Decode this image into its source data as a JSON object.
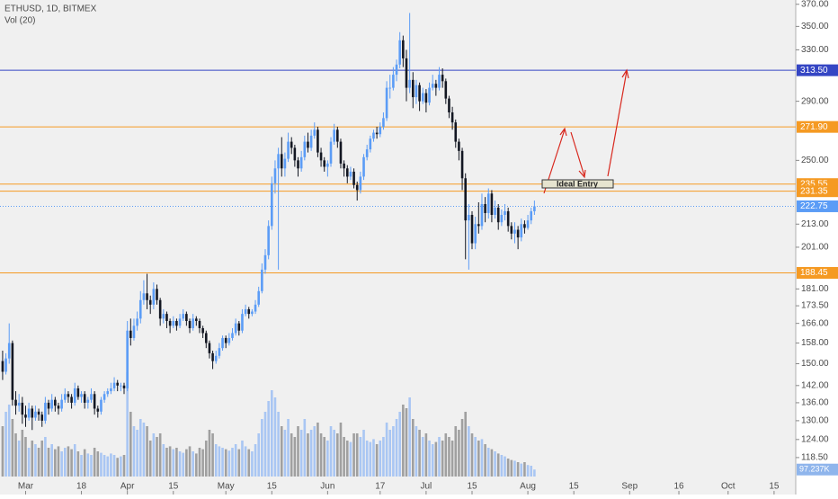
{
  "chart_data": {
    "type": "candlestick",
    "title": "ETHUSD, 1D, BITMEX",
    "log_scale": true,
    "up_color": "#5b9cf6",
    "down_color": "#131722",
    "xlim": [
      -0.8,
      241.6
    ],
    "xticks": [
      {
        "value": 7,
        "label": "Mar"
      },
      {
        "value": 24,
        "label": "18"
      },
      {
        "value": 38,
        "label": "Apr"
      },
      {
        "value": 52,
        "label": "15"
      },
      {
        "value": 68,
        "label": "May"
      },
      {
        "value": 82,
        "label": "15"
      },
      {
        "value": 99,
        "label": "Jun"
      },
      {
        "value": 115,
        "label": "17"
      },
      {
        "value": 129,
        "label": "Jul"
      },
      {
        "value": 143,
        "label": "15"
      },
      {
        "value": 160,
        "label": "Aug"
      },
      {
        "value": 174,
        "label": "15"
      },
      {
        "value": 191,
        "label": "Sep"
      },
      {
        "value": 206,
        "label": "16"
      },
      {
        "value": 221,
        "label": "Oct"
      },
      {
        "value": 235,
        "label": "15"
      }
    ],
    "ylim": [
      108,
      374
    ],
    "yticks": [
      {
        "value": 370,
        "label": "370.00"
      },
      {
        "value": 350,
        "label": "350.00"
      },
      {
        "value": 330,
        "label": "330.00"
      },
      {
        "value": 290,
        "label": "290.00"
      },
      {
        "value": 250,
        "label": "250.00"
      },
      {
        "value": 213,
        "label": "213.00"
      },
      {
        "value": 201,
        "label": "201.00"
      },
      {
        "value": 181,
        "label": "181.00"
      },
      {
        "value": 173.5,
        "label": "173.50"
      },
      {
        "value": 166,
        "label": "166.00"
      },
      {
        "value": 158,
        "label": "158.00"
      },
      {
        "value": 150,
        "label": "150.00"
      },
      {
        "value": 142,
        "label": "142.00"
      },
      {
        "value": 136,
        "label": "136.00"
      },
      {
        "value": 130,
        "label": "130.00"
      },
      {
        "value": 124,
        "label": "124.00"
      },
      {
        "value": 118.5,
        "label": "118.50"
      }
    ],
    "price_lines": [
      {
        "value": 313.5,
        "label": "313.50",
        "color": "#3546c4"
      },
      {
        "value": 271.9,
        "label": "271.90",
        "color": "#f59a23"
      },
      {
        "value": 235.55,
        "label": "235.55",
        "color": "#f59a23"
      },
      {
        "value": 231.35,
        "label": "231.35",
        "color": "#f59a23"
      },
      {
        "value": 222.75,
        "label": "222.75",
        "color": "#5b9cf6",
        "dotted": true
      },
      {
        "value": 188.45,
        "label": "188.45",
        "color": "#f59a23"
      }
    ],
    "annotation": "Ideal Entry",
    "ohlc": [
      [
        151,
        155,
        144,
        147
      ],
      [
        147,
        154,
        146,
        152
      ],
      [
        152,
        166,
        150,
        158
      ],
      [
        158,
        159,
        135,
        137
      ],
      [
        137,
        140,
        132,
        135
      ],
      [
        135,
        139,
        133,
        136
      ],
      [
        136,
        138,
        129,
        132
      ],
      [
        132,
        135,
        128,
        131
      ],
      [
        131,
        136,
        130,
        134
      ],
      [
        134,
        135,
        127,
        131
      ],
      [
        131,
        135,
        130,
        133
      ],
      [
        133,
        134,
        130,
        132
      ],
      [
        132,
        133,
        128,
        130
      ],
      [
        130,
        138,
        129,
        136
      ],
      [
        136,
        137,
        132,
        134
      ],
      [
        134,
        139,
        133,
        137
      ],
      [
        137,
        138,
        133,
        135
      ],
      [
        135,
        136,
        132,
        134
      ],
      [
        134,
        139,
        133,
        137
      ],
      [
        137,
        141,
        136,
        139
      ],
      [
        139,
        140,
        136,
        138
      ],
      [
        138,
        139,
        134,
        136
      ],
      [
        136,
        143,
        135,
        141
      ],
      [
        141,
        142,
        137,
        138
      ],
      [
        138,
        140,
        136,
        139
      ],
      [
        139,
        140,
        134,
        136
      ],
      [
        136,
        138,
        134,
        137
      ],
      [
        137,
        141,
        136,
        139
      ],
      [
        139,
        140,
        132,
        134
      ],
      [
        134,
        135,
        131,
        133
      ],
      [
        133,
        138,
        132,
        137
      ],
      [
        137,
        140,
        136,
        139
      ],
      [
        139,
        141,
        138,
        140
      ],
      [
        140,
        143,
        139,
        141
      ],
      [
        141,
        145,
        140,
        143
      ],
      [
        143,
        144,
        140,
        142
      ],
      [
        142,
        143,
        140,
        142
      ],
      [
        142,
        143,
        139,
        141
      ],
      [
        141,
        167,
        140,
        163
      ],
      [
        163,
        168,
        157,
        160
      ],
      [
        160,
        168,
        159,
        165
      ],
      [
        165,
        171,
        163,
        168
      ],
      [
        168,
        180,
        166,
        176
      ],
      [
        176,
        185,
        174,
        179
      ],
      [
        179,
        188,
        172,
        176
      ],
      [
        176,
        178,
        170,
        174
      ],
      [
        174,
        184,
        172,
        181
      ],
      [
        181,
        183,
        174,
        176
      ],
      [
        176,
        177,
        165,
        168
      ],
      [
        168,
        172,
        166,
        170
      ],
      [
        170,
        171,
        164,
        167
      ],
      [
        167,
        168,
        162,
        165
      ],
      [
        165,
        169,
        164,
        167
      ],
      [
        167,
        168,
        163,
        165
      ],
      [
        165,
        170,
        164,
        168
      ],
      [
        168,
        172,
        167,
        170
      ],
      [
        170,
        171,
        165,
        167
      ],
      [
        167,
        168,
        162,
        164
      ],
      [
        164,
        170,
        163,
        168
      ],
      [
        168,
        169,
        165,
        167
      ],
      [
        167,
        168,
        162,
        164
      ],
      [
        164,
        165,
        160,
        162
      ],
      [
        162,
        163,
        156,
        158
      ],
      [
        158,
        159,
        152,
        154
      ],
      [
        154,
        155,
        148,
        151
      ],
      [
        151,
        155,
        150,
        153
      ],
      [
        153,
        158,
        152,
        156
      ],
      [
        156,
        161,
        155,
        160
      ],
      [
        160,
        161,
        156,
        158
      ],
      [
        158,
        162,
        157,
        160
      ],
      [
        160,
        164,
        159,
        162
      ],
      [
        162,
        168,
        161,
        166
      ],
      [
        166,
        167,
        161,
        163
      ],
      [
        163,
        172,
        162,
        170
      ],
      [
        170,
        174,
        169,
        172
      ],
      [
        172,
        173,
        168,
        170
      ],
      [
        170,
        172,
        169,
        171
      ],
      [
        171,
        176,
        170,
        174
      ],
      [
        174,
        182,
        173,
        180
      ],
      [
        180,
        193,
        179,
        190
      ],
      [
        190,
        200,
        188,
        197
      ],
      [
        197,
        215,
        195,
        212
      ],
      [
        212,
        240,
        210,
        236
      ],
      [
        236,
        250,
        230,
        245
      ],
      [
        245,
        258,
        190,
        254
      ],
      [
        254,
        265,
        240,
        245
      ],
      [
        245,
        255,
        240,
        251
      ],
      [
        251,
        268,
        249,
        262
      ],
      [
        262,
        265,
        254,
        258
      ],
      [
        258,
        260,
        246,
        250
      ],
      [
        250,
        252,
        240,
        245
      ],
      [
        245,
        256,
        243,
        252
      ],
      [
        252,
        266,
        250,
        262
      ],
      [
        262,
        268,
        255,
        258
      ],
      [
        258,
        270,
        256,
        266
      ],
      [
        266,
        275,
        264,
        270
      ],
      [
        270,
        272,
        252,
        255
      ],
      [
        255,
        258,
        246,
        250
      ],
      [
        250,
        252,
        243,
        246
      ],
      [
        246,
        250,
        240,
        248
      ],
      [
        248,
        265,
        246,
        262
      ],
      [
        262,
        274,
        260,
        270
      ],
      [
        270,
        272,
        258,
        262
      ],
      [
        262,
        264,
        245,
        248
      ],
      [
        248,
        250,
        240,
        245
      ],
      [
        245,
        247,
        236,
        240
      ],
      [
        240,
        246,
        238,
        243
      ],
      [
        243,
        245,
        233,
        235
      ],
      [
        235,
        237,
        226,
        232
      ],
      [
        232,
        243,
        230,
        240
      ],
      [
        240,
        254,
        238,
        252
      ],
      [
        252,
        260,
        250,
        257
      ],
      [
        257,
        266,
        255,
        264
      ],
      [
        264,
        270,
        262,
        268
      ],
      [
        268,
        272,
        264,
        267
      ],
      [
        267,
        275,
        265,
        272
      ],
      [
        272,
        282,
        270,
        278
      ],
      [
        278,
        305,
        276,
        300
      ],
      [
        300,
        310,
        292,
        300
      ],
      [
        300,
        316,
        298,
        310
      ],
      [
        310,
        322,
        305,
        318
      ],
      [
        318,
        345,
        315,
        338
      ],
      [
        338,
        342,
        316,
        323
      ],
      [
        323,
        330,
        290,
        300
      ],
      [
        300,
        362,
        296,
        306
      ],
      [
        306,
        312,
        285,
        293
      ],
      [
        293,
        306,
        288,
        302
      ],
      [
        302,
        304,
        283,
        290
      ],
      [
        290,
        300,
        288,
        296
      ],
      [
        296,
        299,
        282,
        289
      ],
      [
        289,
        304,
        287,
        300
      ],
      [
        300,
        310,
        298,
        303
      ],
      [
        303,
        306,
        294,
        300
      ],
      [
        300,
        316,
        298,
        310
      ],
      [
        310,
        315,
        300,
        305
      ],
      [
        305,
        307,
        288,
        292
      ],
      [
        292,
        294,
        278,
        282
      ],
      [
        282,
        286,
        270,
        275
      ],
      [
        275,
        277,
        258,
        262
      ],
      [
        262,
        264,
        250,
        256
      ],
      [
        256,
        258,
        232,
        239
      ],
      [
        239,
        242,
        195,
        215
      ],
      [
        215,
        224,
        190,
        218
      ],
      [
        218,
        220,
        200,
        203
      ],
      [
        203,
        217,
        200,
        213
      ],
      [
        213,
        225,
        208,
        212
      ],
      [
        212,
        230,
        210,
        224
      ],
      [
        224,
        228,
        214,
        219
      ],
      [
        219,
        233,
        216,
        230
      ],
      [
        230,
        232,
        214,
        218
      ],
      [
        218,
        226,
        216,
        222
      ],
      [
        222,
        224,
        210,
        214
      ],
      [
        214,
        221,
        212,
        218
      ],
      [
        218,
        224,
        215,
        220
      ],
      [
        220,
        222,
        209,
        212
      ],
      [
        212,
        214,
        205,
        208
      ],
      [
        208,
        214,
        203,
        210
      ],
      [
        210,
        212,
        200,
        206
      ],
      [
        206,
        216,
        204,
        213
      ],
      [
        213,
        215,
        208,
        211
      ],
      [
        211,
        218,
        210,
        215
      ],
      [
        215,
        222,
        213,
        220
      ],
      [
        220,
        226,
        218,
        222.75
      ]
    ],
    "volume": {
      "name": "Vol (20)",
      "vlim": [
        0,
        1500
      ],
      "up_color": "#a9c6f3",
      "down_color": "#a0a0a0",
      "last_label": "97.237K",
      "values": [
        700,
        900,
        1000,
        800,
        600,
        500,
        650,
        550,
        400,
        500,
        450,
        400,
        500,
        550,
        400,
        450,
        380,
        420,
        350,
        400,
        420,
        380,
        450,
        350,
        300,
        380,
        320,
        300,
        400,
        350,
        330,
        300,
        280,
        320,
        300,
        260,
        280,
        300,
        1450,
        900,
        700,
        650,
        800,
        750,
        700,
        500,
        600,
        550,
        600,
        450,
        400,
        420,
        380,
        400,
        350,
        330,
        380,
        420,
        350,
        320,
        400,
        380,
        500,
        650,
        600,
        450,
        420,
        400,
        380,
        360,
        400,
        450,
        380,
        500,
        420,
        380,
        350,
        450,
        600,
        800,
        900,
        1050,
        1200,
        1100,
        900,
        700,
        650,
        800,
        600,
        550,
        700,
        650,
        800,
        600,
        650,
        700,
        750,
        600,
        550,
        500,
        700,
        650,
        600,
        750,
        550,
        500,
        480,
        600,
        600,
        550,
        650,
        500,
        480,
        520,
        450,
        500,
        550,
        750,
        650,
        700,
        800,
        900,
        1000,
        950,
        1100,
        800,
        700,
        650,
        550,
        600,
        500,
        450,
        480,
        550,
        500,
        600,
        550,
        500,
        700,
        650,
        800,
        900,
        700,
        600,
        550,
        500,
        520,
        450,
        400,
        380,
        350,
        320,
        300,
        280,
        250,
        230,
        220,
        200,
        180,
        200,
        160,
        150,
        97.237
      ]
    }
  }
}
